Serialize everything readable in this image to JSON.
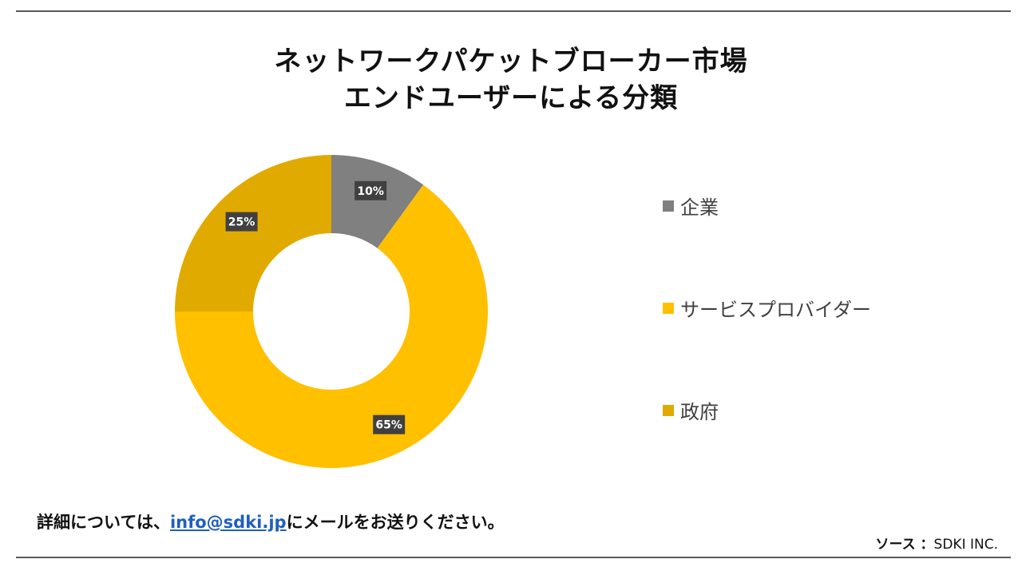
{
  "title": {
    "line1": "ネットワークパケットブローカー市場",
    "line2": "エンドユーザーによる分類"
  },
  "chart_data": {
    "type": "pie",
    "variant": "donut",
    "categories": [
      "企業",
      "サービスプロバイダー",
      "政府"
    ],
    "values": [
      10,
      65,
      25
    ],
    "value_labels": [
      "10%",
      "65%",
      "25%"
    ],
    "colors": [
      "#808080",
      "#FFC000",
      "#E1AA00"
    ],
    "legend_position": "right"
  },
  "footer": {
    "prefix": "詳細については、",
    "email": "info@sdki.jp",
    "suffix": "にメールをお送りください。"
  },
  "source": {
    "label": "ソース ：",
    "value": "SDKI INC."
  }
}
